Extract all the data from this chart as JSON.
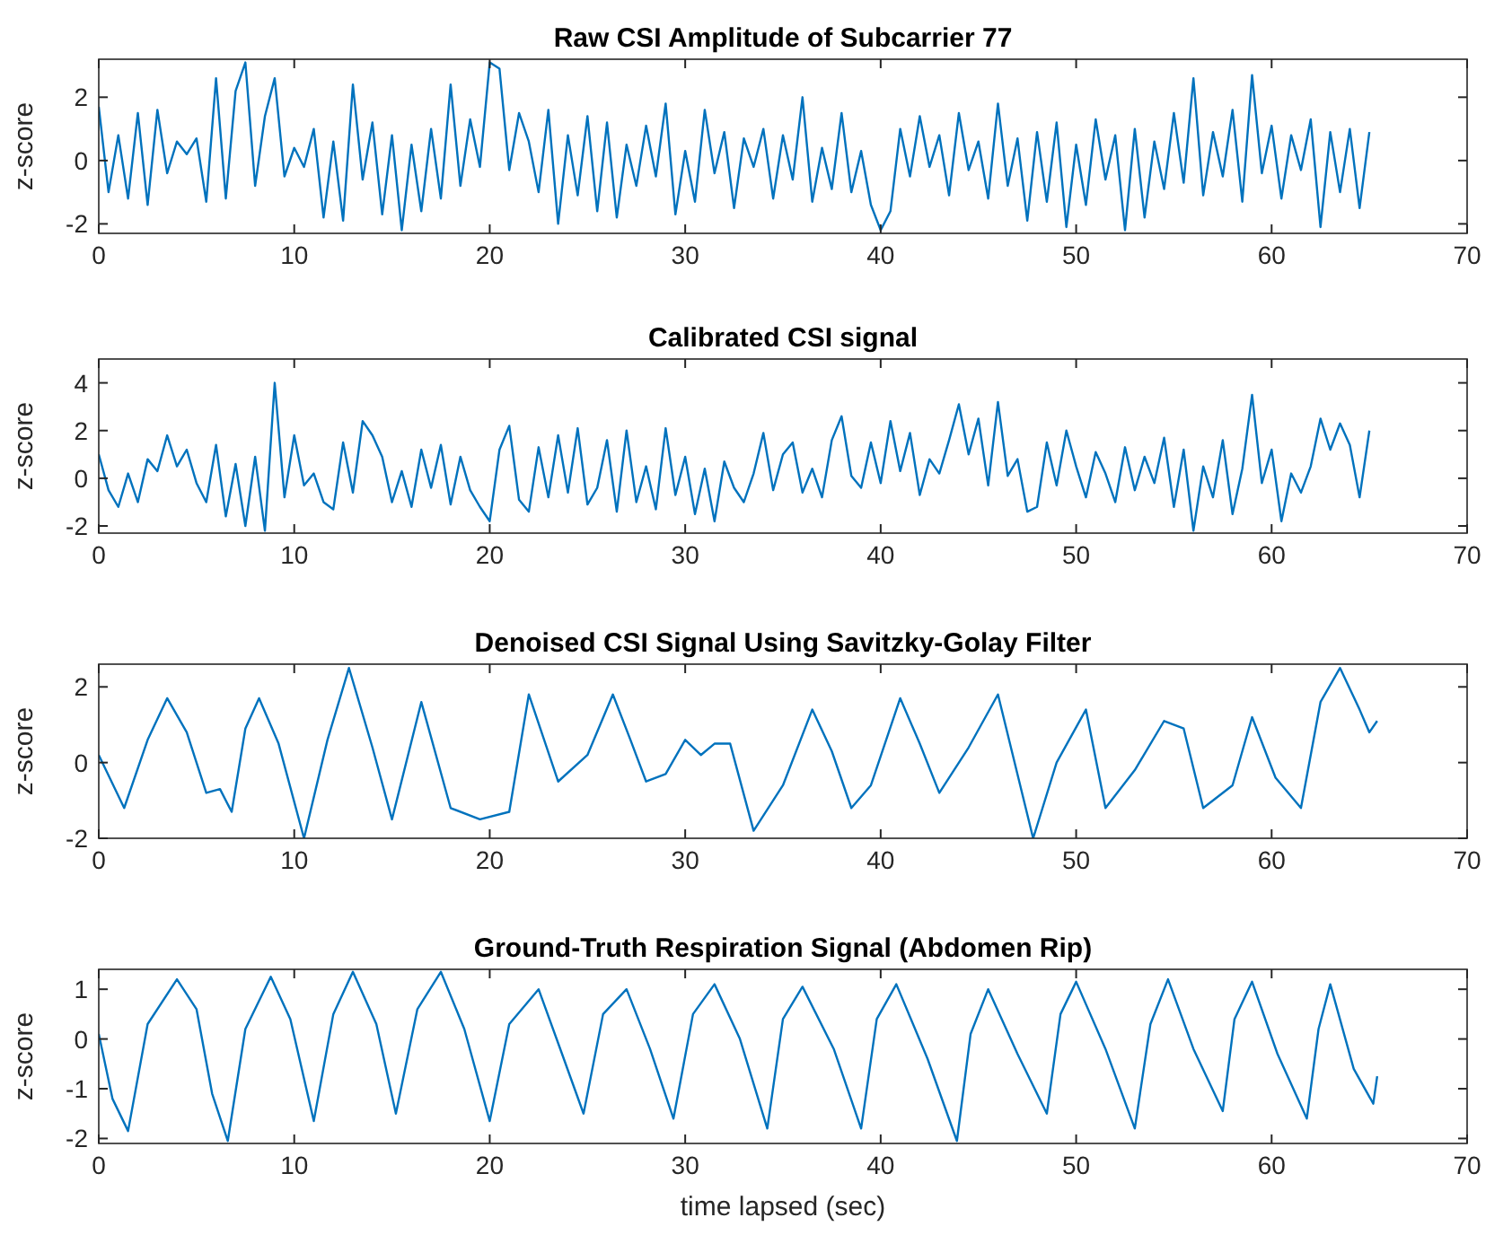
{
  "chart_data": [
    {
      "type": "line",
      "title": "Raw CSI Amplitude of Subcarrier 77",
      "ylabel": "z-score",
      "xlim": [
        0,
        70
      ],
      "xticks": [
        0,
        10,
        20,
        30,
        40,
        50,
        60,
        70
      ],
      "ylim": [
        -2.3,
        3.2
      ],
      "yticks": [
        -2,
        0,
        2
      ],
      "grid": false,
      "x": [
        0,
        0.5,
        1,
        1.5,
        2,
        2.5,
        3,
        3.5,
        4,
        4.5,
        5,
        5.5,
        6,
        6.5,
        7,
        7.5,
        8,
        8.5,
        9,
        9.5,
        10,
        10.5,
        11,
        11.5,
        12,
        12.5,
        13,
        13.5,
        14,
        14.5,
        15,
        15.5,
        16,
        16.5,
        17,
        17.5,
        18,
        18.5,
        19,
        19.5,
        20,
        20.5,
        21,
        21.5,
        22,
        22.5,
        23,
        23.5,
        24,
        24.5,
        25,
        25.5,
        26,
        26.5,
        27,
        27.5,
        28,
        28.5,
        29,
        29.5,
        30,
        30.5,
        31,
        31.5,
        32,
        32.5,
        33,
        33.5,
        34,
        34.5,
        35,
        35.5,
        36,
        36.5,
        37,
        37.5,
        38,
        38.5,
        39,
        39.5,
        40,
        40.5,
        41,
        41.5,
        42,
        42.5,
        43,
        43.5,
        44,
        44.5,
        45,
        45.5,
        46,
        46.5,
        47,
        47.5,
        48,
        48.5,
        49,
        49.5,
        50,
        50.5,
        51,
        51.5,
        52,
        52.5,
        53,
        53.5,
        54,
        54.5,
        55,
        55.5,
        56,
        56.5,
        57,
        57.5,
        58,
        58.5,
        59,
        59.5,
        60,
        60.5,
        61,
        61.5,
        62,
        62.5,
        63,
        63.5,
        64,
        64.5,
        65
      ],
      "series": [
        {
          "color": "#0072bd",
          "values": [
            1.7,
            -1.0,
            0.8,
            -1.2,
            1.5,
            -1.4,
            1.6,
            -0.4,
            0.6,
            0.2,
            0.7,
            -1.3,
            2.6,
            -1.2,
            2.2,
            3.1,
            -0.8,
            1.4,
            2.6,
            -0.5,
            0.4,
            -0.2,
            1.0,
            -1.8,
            0.6,
            -1.9,
            2.4,
            -0.6,
            1.2,
            -1.7,
            0.8,
            -2.2,
            0.5,
            -1.6,
            1.0,
            -1.2,
            2.4,
            -0.8,
            1.3,
            -0.2,
            3.1,
            2.9,
            -0.3,
            1.5,
            0.6,
            -1.0,
            1.6,
            -2.0,
            0.8,
            -1.1,
            1.4,
            -1.6,
            1.2,
            -1.8,
            0.5,
            -0.8,
            1.1,
            -0.5,
            1.8,
            -1.7,
            0.3,
            -1.3,
            1.6,
            -0.4,
            0.9,
            -1.5,
            0.7,
            -0.2,
            1.0,
            -1.2,
            0.8,
            -0.6,
            2.0,
            -1.3,
            0.4,
            -0.9,
            1.5,
            -1.0,
            0.3,
            -1.4,
            -2.2,
            -1.6,
            1.0,
            -0.5,
            1.4,
            -0.2,
            0.8,
            -1.1,
            1.5,
            -0.3,
            0.6,
            -1.2,
            1.8,
            -0.8,
            0.7,
            -1.9,
            0.9,
            -1.3,
            1.2,
            -2.1,
            0.5,
            -1.4,
            1.3,
            -0.6,
            0.8,
            -2.2,
            1.0,
            -1.8,
            0.6,
            -0.9,
            1.5,
            -0.7,
            2.6,
            -1.1,
            0.9,
            -0.5,
            1.6,
            -1.3,
            2.7,
            -0.4,
            1.1,
            -1.2,
            0.8,
            -0.3,
            1.3,
            -2.1,
            0.9,
            -1.0,
            1.0,
            -1.5,
            0.9
          ]
        }
      ]
    },
    {
      "type": "line",
      "title": "Calibrated CSI signal",
      "ylabel": "z-score",
      "xlim": [
        0,
        70
      ],
      "xticks": [
        0,
        10,
        20,
        30,
        40,
        50,
        60,
        70
      ],
      "ylim": [
        -2.3,
        5
      ],
      "yticks": [
        -2,
        0,
        2,
        4
      ],
      "grid": false,
      "x": [
        0,
        0.5,
        1,
        1.5,
        2,
        2.5,
        3,
        3.5,
        4,
        4.5,
        5,
        5.5,
        6,
        6.5,
        7,
        7.5,
        8,
        8.5,
        9,
        9.5,
        10,
        10.5,
        11,
        11.5,
        12,
        12.5,
        13,
        13.5,
        14,
        14.5,
        15,
        15.5,
        16,
        16.5,
        17,
        17.5,
        18,
        18.5,
        19,
        19.5,
        20,
        20.5,
        21,
        21.5,
        22,
        22.5,
        23,
        23.5,
        24,
        24.5,
        25,
        25.5,
        26,
        26.5,
        27,
        27.5,
        28,
        28.5,
        29,
        29.5,
        30,
        30.5,
        31,
        31.5,
        32,
        32.5,
        33,
        33.5,
        34,
        34.5,
        35,
        35.5,
        36,
        36.5,
        37,
        37.5,
        38,
        38.5,
        39,
        39.5,
        40,
        40.5,
        41,
        41.5,
        42,
        42.5,
        43,
        43.5,
        44,
        44.5,
        45,
        45.5,
        46,
        46.5,
        47,
        47.5,
        48,
        48.5,
        49,
        49.5,
        50,
        50.5,
        51,
        51.5,
        52,
        52.5,
        53,
        53.5,
        54,
        54.5,
        55,
        55.5,
        56,
        56.5,
        57,
        57.5,
        58,
        58.5,
        59,
        59.5,
        60,
        60.5,
        61,
        61.5,
        62,
        62.5,
        63,
        63.5,
        64,
        64.5,
        65
      ],
      "series": [
        {
          "color": "#0072bd",
          "values": [
            1.0,
            -0.5,
            -1.2,
            0.2,
            -1.0,
            0.8,
            0.3,
            1.8,
            0.5,
            1.2,
            -0.2,
            -1.0,
            1.4,
            -1.6,
            0.6,
            -2.0,
            0.9,
            -2.2,
            4.0,
            -0.8,
            1.8,
            -0.3,
            0.2,
            -1.0,
            -1.3,
            1.5,
            -0.6,
            2.4,
            1.8,
            0.9,
            -1.0,
            0.3,
            -1.2,
            1.2,
            -0.4,
            1.4,
            -1.1,
            0.9,
            -0.5,
            -1.2,
            -1.8,
            1.2,
            2.2,
            -0.9,
            -1.4,
            1.3,
            -0.8,
            1.8,
            -0.6,
            2.1,
            -1.1,
            -0.4,
            1.6,
            -1.4,
            2.0,
            -1.0,
            0.5,
            -1.3,
            2.1,
            -0.7,
            0.9,
            -1.5,
            0.4,
            -1.8,
            0.7,
            -0.4,
            -1.0,
            0.2,
            1.9,
            -0.5,
            1.0,
            1.5,
            -0.6,
            0.4,
            -0.8,
            1.6,
            2.6,
            0.1,
            -0.4,
            1.5,
            -0.2,
            2.4,
            0.3,
            1.9,
            -0.7,
            0.8,
            0.2,
            1.6,
            3.1,
            1.0,
            2.5,
            -0.3,
            3.2,
            0.1,
            0.8,
            -1.4,
            -1.2,
            1.5,
            -0.3,
            2.0,
            0.5,
            -0.8,
            1.1,
            0.2,
            -1.0,
            1.3,
            -0.5,
            0.9,
            -0.2,
            1.7,
            -1.2,
            1.2,
            -2.2,
            0.5,
            -0.8,
            1.6,
            -1.5,
            0.4,
            3.5,
            -0.2,
            1.2,
            -1.8,
            0.2,
            -0.6,
            0.5,
            2.5,
            1.2,
            2.3,
            1.4,
            -0.8,
            2.0
          ]
        }
      ]
    },
    {
      "type": "line",
      "title": "Denoised CSI Signal Using Savitzky-Golay Filter",
      "ylabel": "z-score",
      "xlim": [
        0,
        70
      ],
      "xticks": [
        0,
        10,
        20,
        30,
        40,
        50,
        60,
        70
      ],
      "ylim": [
        -2,
        2.6
      ],
      "yticks": [
        -2,
        0,
        2
      ],
      "grid": false,
      "x": [
        0,
        1.3,
        2.5,
        3.5,
        4.5,
        5.5,
        6.2,
        6.8,
        7.5,
        8.2,
        9.2,
        10.5,
        11.7,
        12.8,
        14,
        15,
        16.5,
        18,
        19.5,
        21,
        22,
        23.5,
        25,
        26.3,
        27.2,
        28,
        29,
        30,
        30.8,
        31.5,
        32.3,
        33.5,
        35,
        36.5,
        37.5,
        38.5,
        39.5,
        41,
        42,
        43,
        44.5,
        46,
        47.8,
        49,
        50.5,
        51.5,
        53,
        54.5,
        55.5,
        56.5,
        58,
        59,
        60.2,
        61.5,
        62.5,
        63.5,
        64.5,
        65,
        65.4
      ],
      "series": [
        {
          "color": "#0072bd",
          "values": [
            0.2,
            -1.2,
            0.6,
            1.7,
            0.8,
            -0.8,
            -0.7,
            -1.3,
            0.9,
            1.7,
            0.5,
            -2.0,
            0.6,
            2.5,
            0.4,
            -1.5,
            1.6,
            -1.2,
            -1.5,
            -1.3,
            1.8,
            -0.5,
            0.2,
            1.8,
            0.6,
            -0.5,
            -0.3,
            0.6,
            0.2,
            0.5,
            0.5,
            -1.8,
            -0.6,
            1.4,
            0.3,
            -1.2,
            -0.6,
            1.7,
            0.5,
            -0.8,
            0.4,
            1.8,
            -2.0,
            0.0,
            1.4,
            -1.2,
            -0.2,
            1.1,
            0.9,
            -1.2,
            -0.6,
            1.2,
            -0.4,
            -1.2,
            1.6,
            2.5,
            1.4,
            0.8,
            1.1
          ]
        }
      ]
    },
    {
      "type": "line",
      "title": "Ground-Truth Respiration Signal (Abdomen Rip)",
      "ylabel": "z-score",
      "xlabel": "time lapsed (sec)",
      "xlim": [
        0,
        70
      ],
      "xticks": [
        0,
        10,
        20,
        30,
        40,
        50,
        60,
        70
      ],
      "ylim": [
        -2.1,
        1.4
      ],
      "yticks": [
        -2,
        -1,
        0,
        1
      ],
      "grid": false,
      "x": [
        0,
        0.7,
        1.5,
        2.5,
        4,
        5,
        5.8,
        6.6,
        7.5,
        8.8,
        9.8,
        11,
        12,
        13,
        14.2,
        15.2,
        16.3,
        17.5,
        18.7,
        20,
        21,
        22.5,
        23.7,
        24.8,
        25.8,
        27,
        28.2,
        29.4,
        30.4,
        31.5,
        32.8,
        34.2,
        35,
        36,
        37.6,
        39,
        39.8,
        40.8,
        42.4,
        43.9,
        44.6,
        45.5,
        47,
        48.5,
        49.2,
        50,
        51.5,
        53,
        53.8,
        54.7,
        56,
        57.5,
        58.1,
        59,
        60.3,
        61.8,
        62.4,
        63,
        64.2,
        65.2,
        65.4
      ],
      "series": [
        {
          "color": "#0072bd",
          "values": [
            0.1,
            -1.2,
            -1.85,
            0.3,
            1.2,
            0.6,
            -1.1,
            -2.05,
            0.2,
            1.25,
            0.4,
            -1.65,
            0.5,
            1.35,
            0.3,
            -1.5,
            0.6,
            1.35,
            0.2,
            -1.65,
            0.3,
            1.0,
            -0.3,
            -1.5,
            0.5,
            1.0,
            -0.2,
            -1.6,
            0.5,
            1.1,
            0.0,
            -1.8,
            0.4,
            1.05,
            -0.2,
            -1.8,
            0.4,
            1.1,
            -0.4,
            -2.05,
            0.1,
            1.0,
            -0.3,
            -1.5,
            0.5,
            1.15,
            -0.2,
            -1.8,
            0.3,
            1.2,
            -0.2,
            -1.45,
            0.4,
            1.15,
            -0.3,
            -1.6,
            0.2,
            1.1,
            -0.6,
            -1.3,
            -0.75
          ]
        }
      ]
    }
  ]
}
